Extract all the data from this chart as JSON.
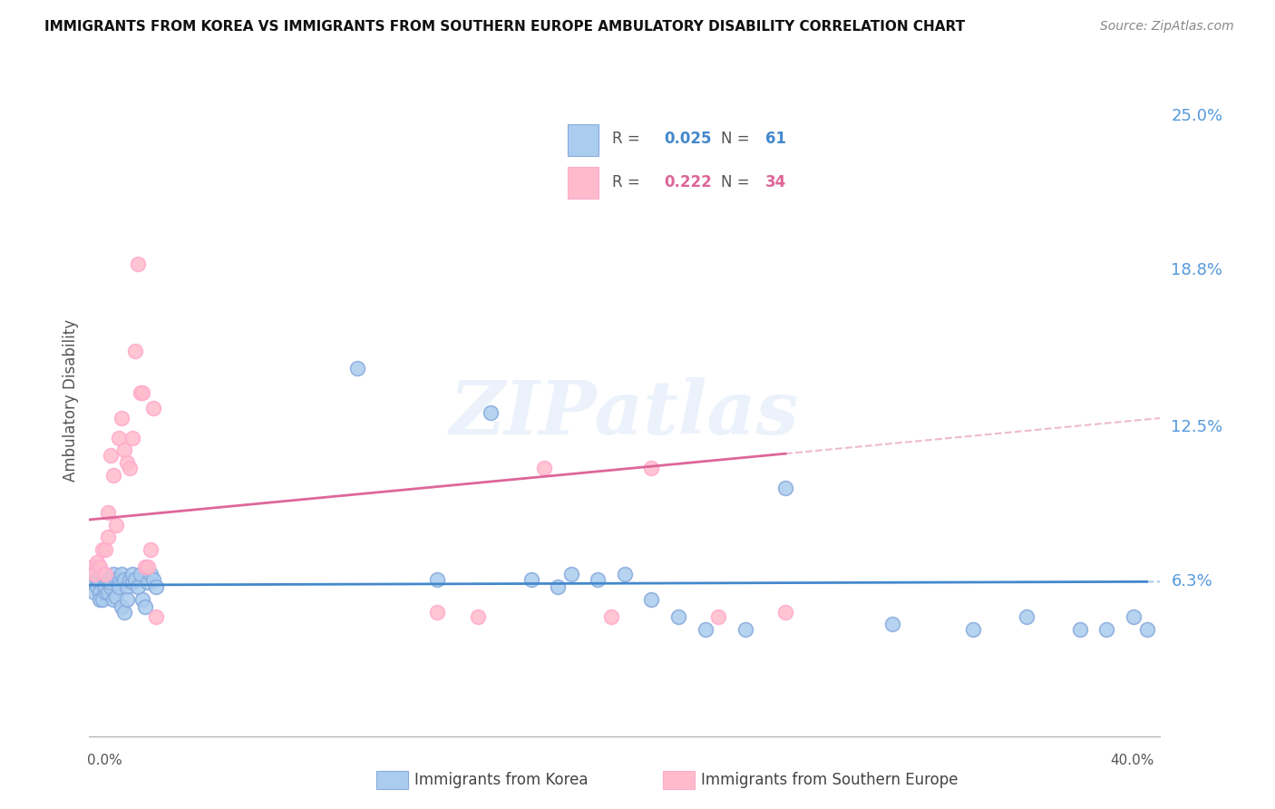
{
  "title": "IMMIGRANTS FROM KOREA VS IMMIGRANTS FROM SOUTHERN EUROPE AMBULATORY DISABILITY CORRELATION CHART",
  "source": "Source: ZipAtlas.com",
  "ylabel": "Ambulatory Disability",
  "y_ticks": [
    0.063,
    0.125,
    0.188,
    0.25
  ],
  "y_tick_labels": [
    "6.3%",
    "12.5%",
    "18.8%",
    "25.0%"
  ],
  "x_range": [
    0.0,
    0.4
  ],
  "y_range": [
    0.0,
    0.27
  ],
  "korea_R": 0.025,
  "korea_N": 61,
  "se_R": 0.222,
  "se_N": 34,
  "korea_color": "#aaccee",
  "se_color": "#ffbbcc",
  "korea_edge_color": "#88aadd",
  "se_edge_color": "#ffaacc",
  "korea_line_color": "#4488cc",
  "se_line_color": "#dd6699",
  "right_label_color": "#5599dd",
  "background_color": "#ffffff",
  "grid_color": "#dddddd",
  "watermark": "ZIPatlas",
  "korea_scatter_x": [
    0.001,
    0.002,
    0.002,
    0.003,
    0.003,
    0.004,
    0.004,
    0.004,
    0.005,
    0.005,
    0.006,
    0.006,
    0.006,
    0.007,
    0.007,
    0.008,
    0.008,
    0.009,
    0.009,
    0.01,
    0.01,
    0.011,
    0.011,
    0.012,
    0.012,
    0.013,
    0.013,
    0.014,
    0.014,
    0.015,
    0.016,
    0.016,
    0.017,
    0.018,
    0.019,
    0.02,
    0.021,
    0.022,
    0.023,
    0.024,
    0.025,
    0.1,
    0.13,
    0.15,
    0.165,
    0.175,
    0.18,
    0.19,
    0.2,
    0.21,
    0.22,
    0.23,
    0.245,
    0.26,
    0.3,
    0.33,
    0.35,
    0.37,
    0.38,
    0.39,
    0.395
  ],
  "korea_scatter_y": [
    0.065,
    0.062,
    0.058,
    0.063,
    0.06,
    0.062,
    0.058,
    0.055,
    0.065,
    0.055,
    0.062,
    0.058,
    0.06,
    0.063,
    0.058,
    0.06,
    0.062,
    0.065,
    0.055,
    0.056,
    0.063,
    0.062,
    0.06,
    0.065,
    0.052,
    0.063,
    0.05,
    0.06,
    0.055,
    0.063,
    0.062,
    0.065,
    0.063,
    0.06,
    0.065,
    0.055,
    0.052,
    0.062,
    0.065,
    0.063,
    0.06,
    0.148,
    0.063,
    0.13,
    0.063,
    0.06,
    0.065,
    0.063,
    0.065,
    0.055,
    0.048,
    0.043,
    0.043,
    0.1,
    0.045,
    0.043,
    0.048,
    0.043,
    0.043,
    0.048,
    0.043
  ],
  "se_scatter_x": [
    0.001,
    0.002,
    0.003,
    0.004,
    0.005,
    0.006,
    0.006,
    0.007,
    0.007,
    0.008,
    0.009,
    0.01,
    0.011,
    0.012,
    0.013,
    0.014,
    0.015,
    0.016,
    0.017,
    0.018,
    0.019,
    0.02,
    0.021,
    0.022,
    0.023,
    0.024,
    0.025,
    0.13,
    0.145,
    0.17,
    0.195,
    0.21,
    0.235,
    0.26
  ],
  "se_scatter_y": [
    0.068,
    0.065,
    0.07,
    0.068,
    0.075,
    0.065,
    0.075,
    0.09,
    0.08,
    0.113,
    0.105,
    0.085,
    0.12,
    0.128,
    0.115,
    0.11,
    0.108,
    0.12,
    0.155,
    0.19,
    0.138,
    0.138,
    0.068,
    0.068,
    0.075,
    0.132,
    0.048,
    0.05,
    0.048,
    0.108,
    0.048,
    0.108,
    0.048,
    0.05
  ]
}
